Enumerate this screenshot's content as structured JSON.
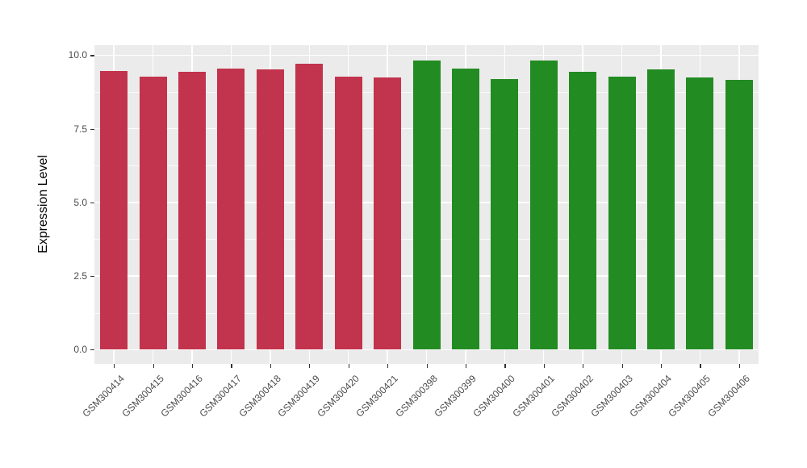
{
  "chart_data": {
    "type": "bar",
    "title": "",
    "xlabel": "",
    "ylabel": "Expression Level",
    "ylim": [
      0,
      10
    ],
    "yticks": [
      "0.0",
      "2.5",
      "5.0",
      "7.5",
      "10.0"
    ],
    "ytick_values": [
      0,
      2.5,
      5,
      7.5,
      10
    ],
    "yminor_values": [
      1.25,
      3.75,
      6.25,
      8.75
    ],
    "grid": "on",
    "legend": "none",
    "categories": [
      "GSM300414",
      "GSM300415",
      "GSM300416",
      "GSM300417",
      "GSM300418",
      "GSM300419",
      "GSM300420",
      "GSM300421",
      "GSM300398",
      "GSM300399",
      "GSM300400",
      "GSM300401",
      "GSM300402",
      "GSM300403",
      "GSM300404",
      "GSM300405",
      "GSM300406"
    ],
    "values": [
      9.45,
      9.27,
      9.44,
      9.54,
      9.52,
      9.7,
      9.26,
      9.25,
      9.82,
      9.55,
      9.2,
      9.82,
      9.44,
      9.28,
      9.53,
      9.23,
      9.17
    ],
    "bar_colors": [
      "#C2334D",
      "#C2334D",
      "#C2334D",
      "#C2334D",
      "#C2334D",
      "#C2334D",
      "#C2334D",
      "#C2334D",
      "#228B22",
      "#228B22",
      "#228B22",
      "#228B22",
      "#228B22",
      "#228B22",
      "#228B22",
      "#228B22",
      "#228B22"
    ],
    "panel_bg": "#EBEBEB",
    "grid_color": "#FFFFFF",
    "axis_text_color": "#4D4D4D",
    "axis_title_color": "#000000"
  }
}
